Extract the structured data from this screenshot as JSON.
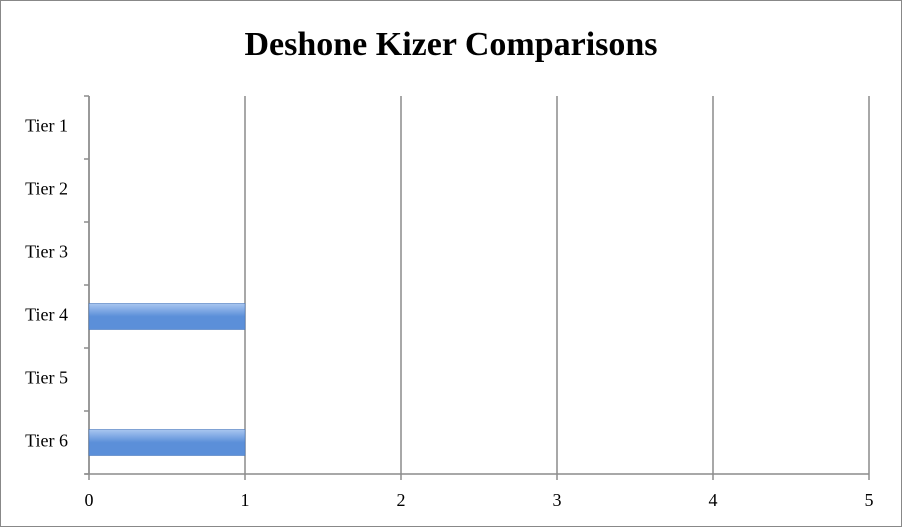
{
  "chart_data": {
    "type": "bar",
    "orientation": "horizontal",
    "title": "Deshone Kizer Comparisons",
    "categories": [
      "Tier 1",
      "Tier 2",
      "Tier 3",
      "Tier 4",
      "Tier 5",
      "Tier 6"
    ],
    "values": [
      0,
      0,
      0,
      1,
      0,
      1
    ],
    "color": "#5b8fd9",
    "xlim": [
      0,
      5
    ],
    "xticks": [
      0,
      1,
      2,
      3,
      4,
      5
    ],
    "grid": true
  }
}
